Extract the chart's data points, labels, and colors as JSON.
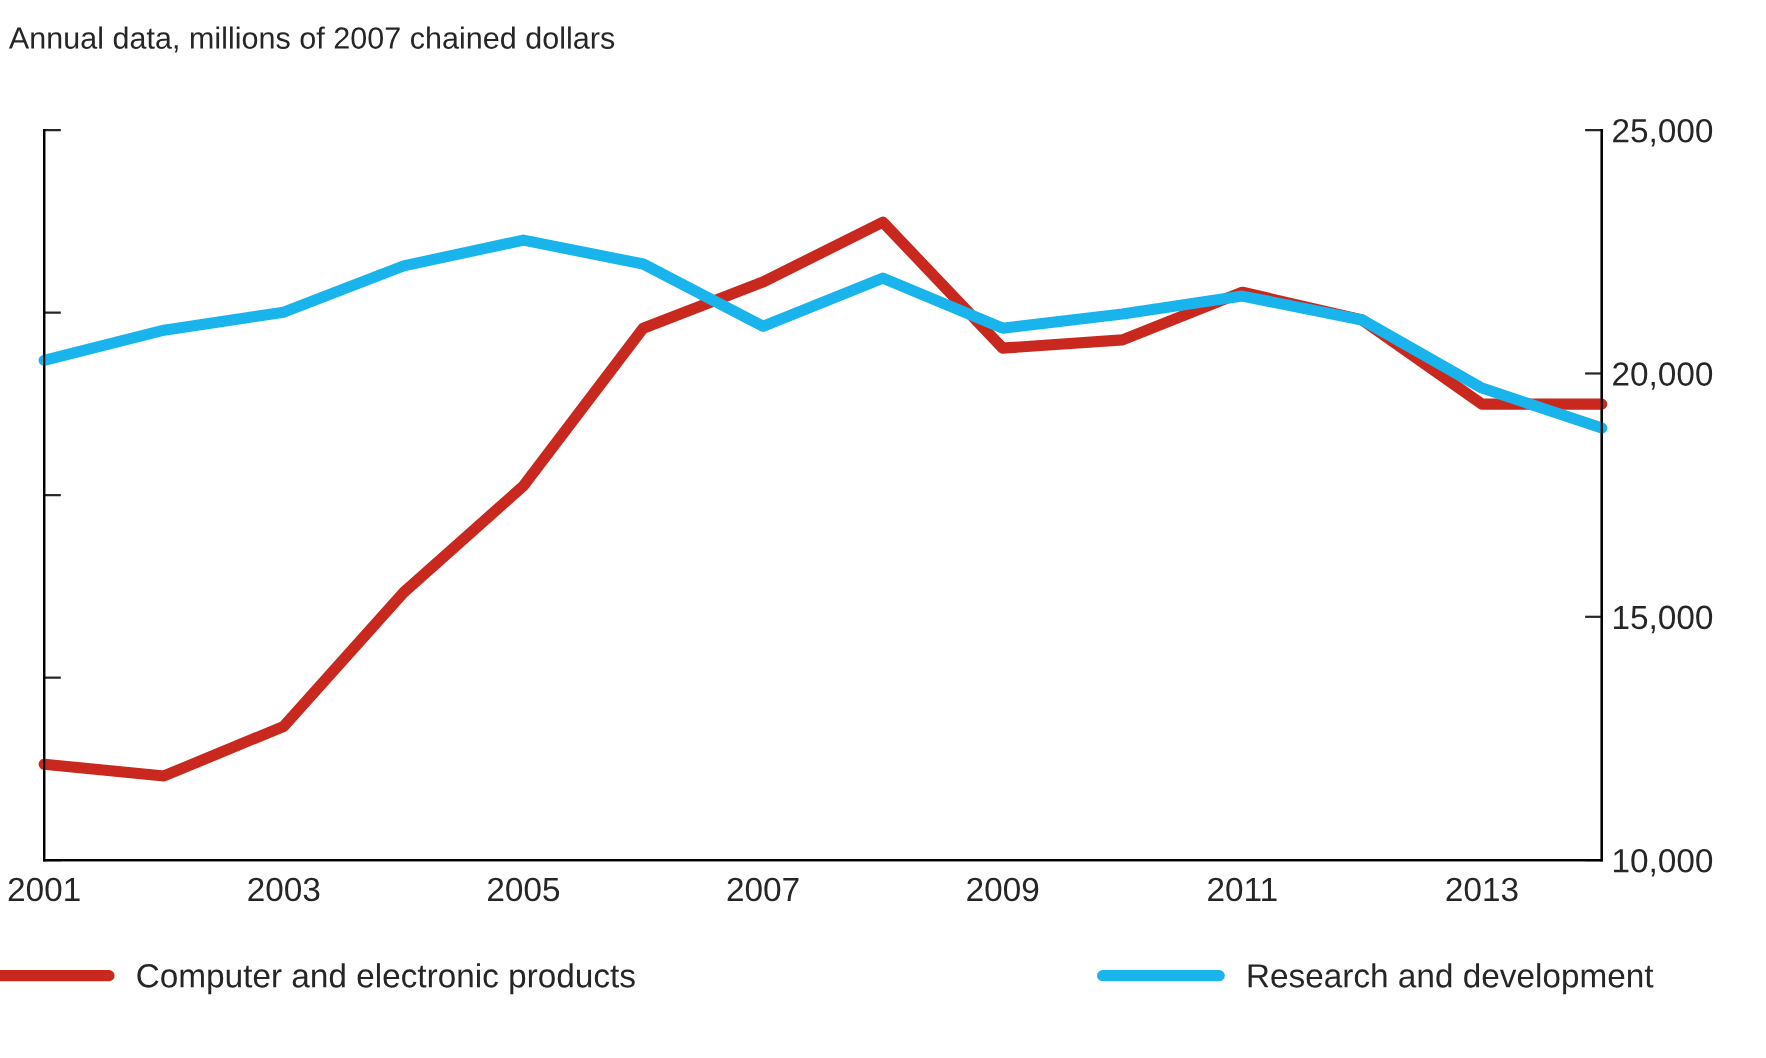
{
  "chart_data": {
    "type": "line",
    "title": "Annual data, millions of 2007 chained dollars",
    "x": [
      2001,
      2002,
      2003,
      2004,
      2005,
      2006,
      2007,
      2008,
      2009,
      2010,
      2011,
      2012,
      2013,
      2014
    ],
    "series": [
      {
        "name": "Computer and electronic products",
        "color": "#c8281e",
        "axis": "y2",
        "values": [
          11970,
          11730,
          12750,
          15500,
          17690,
          20930,
          21880,
          23110,
          20520,
          20690,
          21670,
          21100,
          19370,
          19370
        ]
      },
      {
        "name": "Research and development",
        "color": "#19b4eb",
        "axis": "y2",
        "values": [
          20270,
          20890,
          21260,
          22210,
          22740,
          22250,
          20970,
          21960,
          20930,
          21220,
          21590,
          21100,
          19700,
          18880
        ]
      }
    ],
    "xlim": [
      2001,
      2014
    ],
    "xticks": [
      2001,
      2003,
      2005,
      2007,
      2009,
      2011,
      2013
    ],
    "y2lim": [
      10000,
      25000
    ],
    "y2ticks": [
      {
        "value": 10000,
        "label": "10,000"
      },
      {
        "value": 15000,
        "label": "15,000"
      },
      {
        "value": 20000,
        "label": "20,000"
      },
      {
        "value": 25000,
        "label": "25,000"
      }
    ],
    "legend": "bottom",
    "grid": false
  }
}
